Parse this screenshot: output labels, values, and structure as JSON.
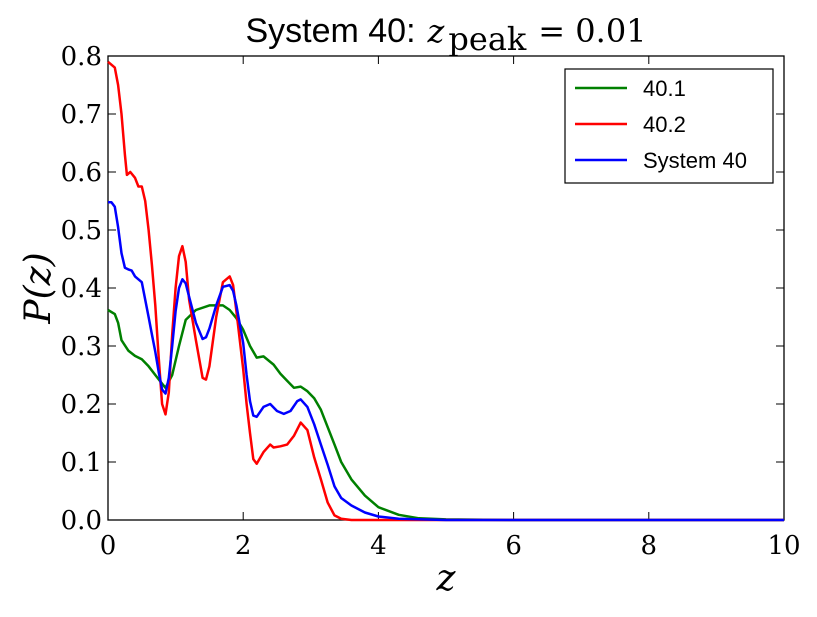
{
  "chart_data": {
    "type": "line",
    "title": {
      "prefix": "System 40:",
      "math_var": "z",
      "math_sub": "peak",
      "math_rest": "= 0.01"
    },
    "xlabel": "z",
    "ylabel": "P(z)",
    "xlim": [
      0,
      10
    ],
    "ylim": [
      0,
      0.8
    ],
    "xticks": [
      0,
      2,
      4,
      6,
      8,
      10
    ],
    "xtick_labels": [
      "0",
      "2",
      "4",
      "6",
      "8",
      "10"
    ],
    "yticks": [
      0.0,
      0.1,
      0.2,
      0.3,
      0.4,
      0.5,
      0.6,
      0.7,
      0.8
    ],
    "ytick_labels": [
      "0.0",
      "0.1",
      "0.2",
      "0.3",
      "0.4",
      "0.5",
      "0.6",
      "0.7",
      "0.8"
    ],
    "grid": false,
    "legend_position": "top-right",
    "series": [
      {
        "name": "40.1",
        "color": "#008000",
        "points": [
          [
            0,
            0.362
          ],
          [
            0.1,
            0.355
          ],
          [
            0.15,
            0.34
          ],
          [
            0.2,
            0.31
          ],
          [
            0.3,
            0.292
          ],
          [
            0.4,
            0.283
          ],
          [
            0.5,
            0.277
          ],
          [
            0.6,
            0.265
          ],
          [
            0.7,
            0.25
          ],
          [
            0.8,
            0.235
          ],
          [
            0.85,
            0.228
          ],
          [
            0.95,
            0.25
          ],
          [
            1.05,
            0.3
          ],
          [
            1.15,
            0.345
          ],
          [
            1.3,
            0.362
          ],
          [
            1.5,
            0.37
          ],
          [
            1.7,
            0.37
          ],
          [
            1.8,
            0.362
          ],
          [
            1.9,
            0.348
          ],
          [
            2.0,
            0.328
          ],
          [
            2.1,
            0.3
          ],
          [
            2.2,
            0.28
          ],
          [
            2.3,
            0.282
          ],
          [
            2.45,
            0.268
          ],
          [
            2.55,
            0.252
          ],
          [
            2.65,
            0.24
          ],
          [
            2.75,
            0.228
          ],
          [
            2.85,
            0.23
          ],
          [
            2.95,
            0.222
          ],
          [
            3.05,
            0.21
          ],
          [
            3.15,
            0.19
          ],
          [
            3.25,
            0.16
          ],
          [
            3.35,
            0.13
          ],
          [
            3.45,
            0.1
          ],
          [
            3.6,
            0.07
          ],
          [
            3.8,
            0.042
          ],
          [
            4.0,
            0.022
          ],
          [
            4.3,
            0.009
          ],
          [
            4.6,
            0.003
          ],
          [
            5.0,
            0.001
          ],
          [
            6.0,
            0.0
          ],
          [
            10.0,
            0.0
          ]
        ]
      },
      {
        "name": "40.2",
        "color": "#ff0000",
        "points": [
          [
            0,
            0.79
          ],
          [
            0.05,
            0.785
          ],
          [
            0.1,
            0.78
          ],
          [
            0.15,
            0.75
          ],
          [
            0.2,
            0.7
          ],
          [
            0.25,
            0.63
          ],
          [
            0.28,
            0.595
          ],
          [
            0.33,
            0.6
          ],
          [
            0.4,
            0.59
          ],
          [
            0.45,
            0.575
          ],
          [
            0.5,
            0.575
          ],
          [
            0.55,
            0.55
          ],
          [
            0.6,
            0.5
          ],
          [
            0.65,
            0.44
          ],
          [
            0.7,
            0.37
          ],
          [
            0.75,
            0.28
          ],
          [
            0.8,
            0.2
          ],
          [
            0.85,
            0.182
          ],
          [
            0.9,
            0.22
          ],
          [
            0.95,
            0.32
          ],
          [
            1.0,
            0.4
          ],
          [
            1.05,
            0.455
          ],
          [
            1.1,
            0.472
          ],
          [
            1.15,
            0.445
          ],
          [
            1.2,
            0.38
          ],
          [
            1.3,
            0.31
          ],
          [
            1.4,
            0.245
          ],
          [
            1.45,
            0.242
          ],
          [
            1.5,
            0.265
          ],
          [
            1.6,
            0.35
          ],
          [
            1.7,
            0.41
          ],
          [
            1.8,
            0.42
          ],
          [
            1.85,
            0.405
          ],
          [
            1.9,
            0.36
          ],
          [
            2.0,
            0.26
          ],
          [
            2.05,
            0.2
          ],
          [
            2.1,
            0.15
          ],
          [
            2.15,
            0.105
          ],
          [
            2.2,
            0.097
          ],
          [
            2.3,
            0.117
          ],
          [
            2.4,
            0.13
          ],
          [
            2.45,
            0.125
          ],
          [
            2.55,
            0.127
          ],
          [
            2.65,
            0.13
          ],
          [
            2.75,
            0.145
          ],
          [
            2.85,
            0.168
          ],
          [
            2.95,
            0.155
          ],
          [
            3.05,
            0.108
          ],
          [
            3.15,
            0.07
          ],
          [
            3.25,
            0.03
          ],
          [
            3.35,
            0.008
          ],
          [
            3.45,
            0.002
          ],
          [
            3.6,
            0.0
          ],
          [
            10.0,
            0.0
          ]
        ]
      },
      {
        "name": "System 40",
        "color": "#0000ff",
        "points": [
          [
            0,
            0.548
          ],
          [
            0.05,
            0.548
          ],
          [
            0.1,
            0.54
          ],
          [
            0.15,
            0.505
          ],
          [
            0.2,
            0.46
          ],
          [
            0.25,
            0.435
          ],
          [
            0.3,
            0.432
          ],
          [
            0.35,
            0.43
          ],
          [
            0.4,
            0.42
          ],
          [
            0.45,
            0.415
          ],
          [
            0.5,
            0.41
          ],
          [
            0.55,
            0.38
          ],
          [
            0.6,
            0.35
          ],
          [
            0.65,
            0.32
          ],
          [
            0.7,
            0.29
          ],
          [
            0.75,
            0.255
          ],
          [
            0.8,
            0.225
          ],
          [
            0.85,
            0.218
          ],
          [
            0.9,
            0.245
          ],
          [
            0.95,
            0.3
          ],
          [
            1.0,
            0.36
          ],
          [
            1.05,
            0.4
          ],
          [
            1.1,
            0.415
          ],
          [
            1.15,
            0.408
          ],
          [
            1.2,
            0.385
          ],
          [
            1.3,
            0.34
          ],
          [
            1.4,
            0.312
          ],
          [
            1.45,
            0.315
          ],
          [
            1.5,
            0.33
          ],
          [
            1.6,
            0.37
          ],
          [
            1.7,
            0.402
          ],
          [
            1.8,
            0.405
          ],
          [
            1.85,
            0.395
          ],
          [
            1.9,
            0.37
          ],
          [
            2.0,
            0.305
          ],
          [
            2.05,
            0.25
          ],
          [
            2.1,
            0.205
          ],
          [
            2.15,
            0.18
          ],
          [
            2.2,
            0.178
          ],
          [
            2.3,
            0.195
          ],
          [
            2.4,
            0.2
          ],
          [
            2.5,
            0.188
          ],
          [
            2.6,
            0.183
          ],
          [
            2.7,
            0.188
          ],
          [
            2.8,
            0.205
          ],
          [
            2.85,
            0.208
          ],
          [
            2.95,
            0.195
          ],
          [
            3.05,
            0.165
          ],
          [
            3.15,
            0.13
          ],
          [
            3.25,
            0.095
          ],
          [
            3.35,
            0.058
          ],
          [
            3.45,
            0.038
          ],
          [
            3.6,
            0.025
          ],
          [
            3.8,
            0.013
          ],
          [
            4.0,
            0.006
          ],
          [
            4.3,
            0.002
          ],
          [
            5.0,
            0.0
          ],
          [
            10.0,
            0.0
          ]
        ]
      }
    ]
  }
}
